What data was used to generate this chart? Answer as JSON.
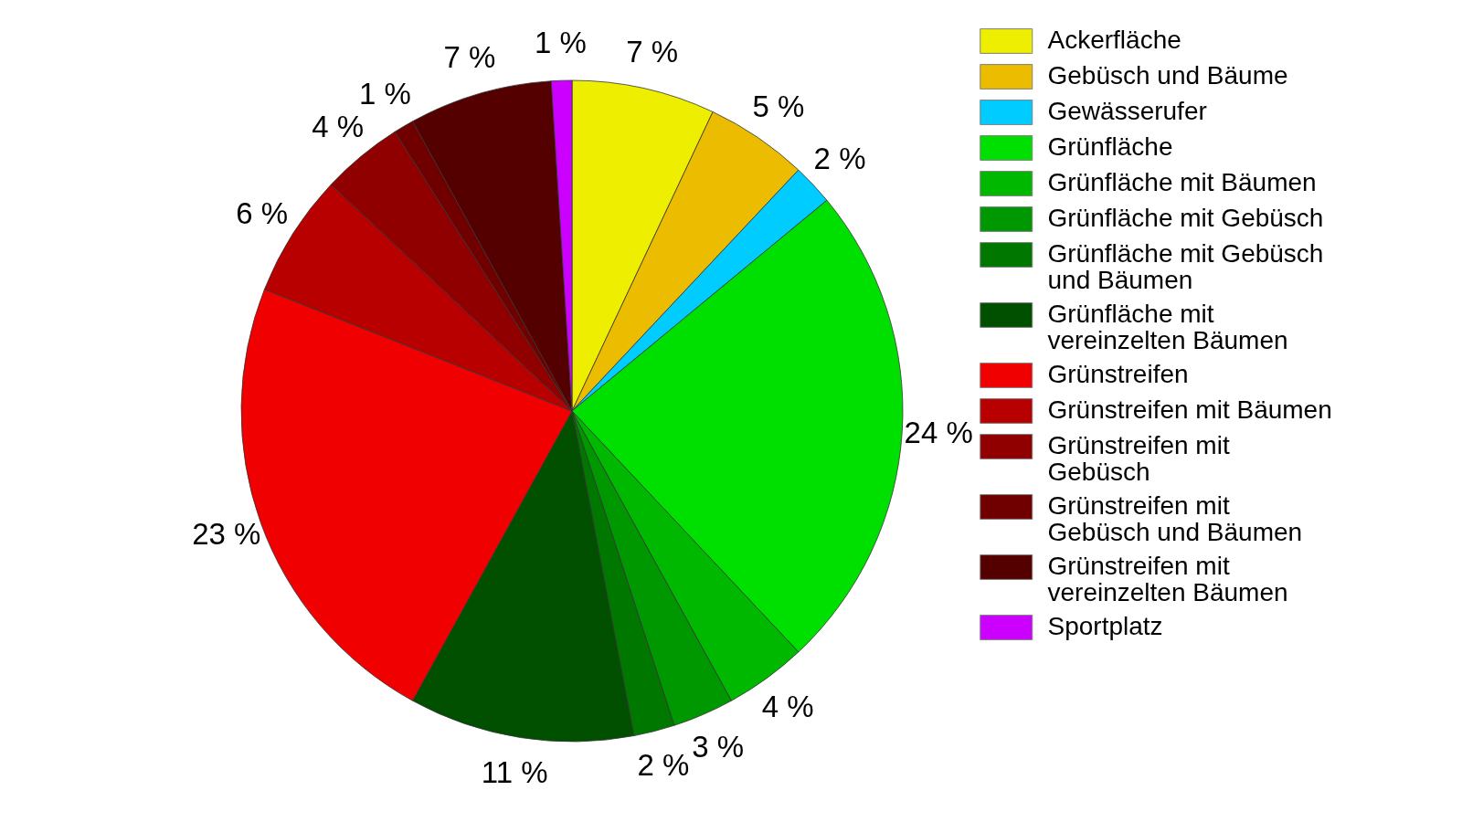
{
  "chart_data": {
    "type": "pie",
    "categories": [
      "Ackerfläche",
      "Gebüsch und Bäume",
      "Gewässerufer",
      "Grünfläche",
      "Grünfläche mit Bäumen",
      "Grünfläche mit Gebüsch",
      "Grünfläche mit Gebüsch und Bäumen",
      "Grünfläche mit vereinzelten Bäumen",
      "Grünstreifen",
      "Grünstreifen mit Bäumen",
      "Grünstreifen mit Gebüsch",
      "Grünstreifen mit Gebüsch und Bäumen",
      "Grünstreifen mit vereinzelten Bäumen",
      "Sportplatz"
    ],
    "values": [
      7,
      5,
      2,
      24,
      4,
      3,
      2,
      11,
      23,
      6,
      4,
      1,
      7,
      1
    ],
    "colors": [
      "#eeee00",
      "#ebbc00",
      "#00ccff",
      "#00e000",
      "#00b800",
      "#009800",
      "#007800",
      "#005000",
      "#f00000",
      "#b80000",
      "#900000",
      "#700000",
      "#550000",
      "#cc00ff"
    ],
    "value_labels": [
      "7 %",
      "5 %",
      "2 %",
      "24 %",
      "4 %",
      "3 %",
      "2 %",
      "11 %",
      "23 %",
      "6 %",
      "4 %",
      "1 %",
      "7 %",
      "1 %"
    ],
    "legend": "right"
  }
}
